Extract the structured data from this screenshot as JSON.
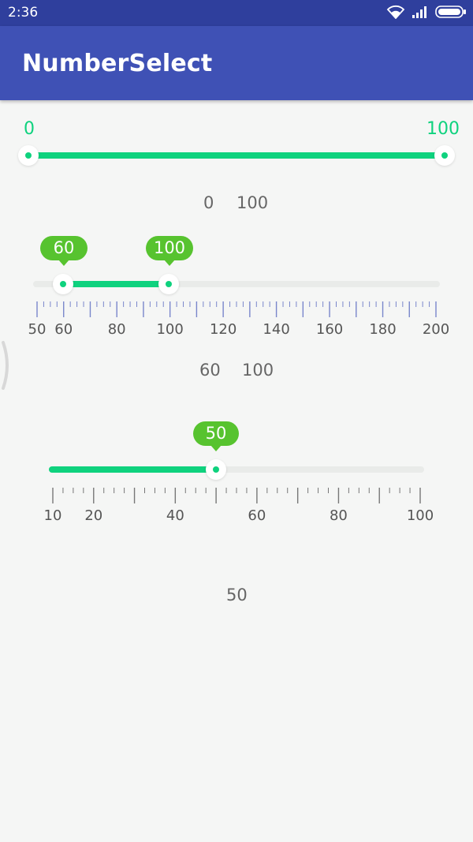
{
  "status_bar": {
    "time": "2:36",
    "icons": [
      "wifi-icon",
      "signal-icon",
      "battery-icon"
    ]
  },
  "app_bar": {
    "title": "NumberSelect",
    "color": "#3f51b5"
  },
  "colors": {
    "accent_green": "#0fd27e",
    "bubble_green": "#57c32f",
    "track_gray": "#e9ebe9",
    "tick_blue": "#7986cb"
  },
  "slider1": {
    "min_label": "0",
    "max_label": "100",
    "low": 0,
    "high": 100,
    "value_low_text": "0",
    "value_high_text": "100"
  },
  "slider2": {
    "low": 60,
    "high": 100,
    "bubble_low": "60",
    "bubble_high": "100",
    "scale_min": 50,
    "scale_max": 200,
    "tick_labels": [
      "50",
      "60",
      "80",
      "100",
      "120",
      "140",
      "160",
      "180",
      "200"
    ],
    "value_low_text": "60",
    "value_high_text": "100"
  },
  "slider3": {
    "value": 50,
    "bubble": "50",
    "scale_min": 10,
    "scale_max": 100,
    "tick_labels": [
      "10",
      "20",
      "40",
      "60",
      "80",
      "100"
    ],
    "value_text": "50"
  }
}
